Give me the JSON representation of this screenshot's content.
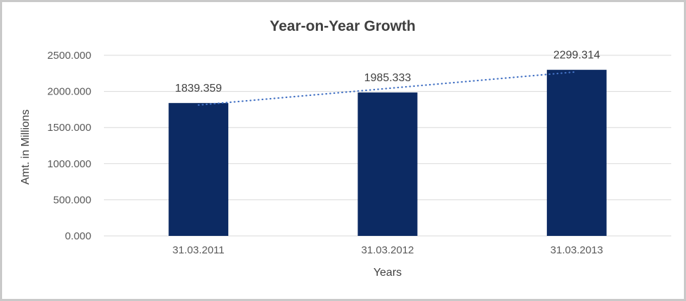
{
  "chart_data": {
    "type": "bar",
    "title": "Year-on-Year Growth",
    "xlabel": "Years",
    "ylabel": "Amt. in Millions",
    "categories": [
      "31.03.2011",
      "31.03.2012",
      "31.03.2013"
    ],
    "values": [
      1839.359,
      1985.333,
      2299.314
    ],
    "data_labels": [
      "1839.359",
      "1985.333",
      "2299.314"
    ],
    "y_tick_values": [
      0,
      500,
      1000,
      1500,
      2000,
      2500
    ],
    "y_tick_labels": [
      "0.000",
      "500.000",
      "1000.000",
      "1500.000",
      "2000.000",
      "2500.000"
    ],
    "ylim": [
      0,
      2500
    ],
    "grid": true,
    "legend": "none",
    "trendline": {
      "type": "linear",
      "style": "dotted",
      "color": "#4472C4"
    },
    "colors": {
      "bar": "#0C2A63",
      "gridline": "#D9D9D9",
      "title_text": "#3F3F3F",
      "axis_title_text": "#404040",
      "tick_text": "#595959",
      "data_label_text": "#404040",
      "background": "#FFFFFF",
      "border": "#C9C9C9"
    }
  }
}
